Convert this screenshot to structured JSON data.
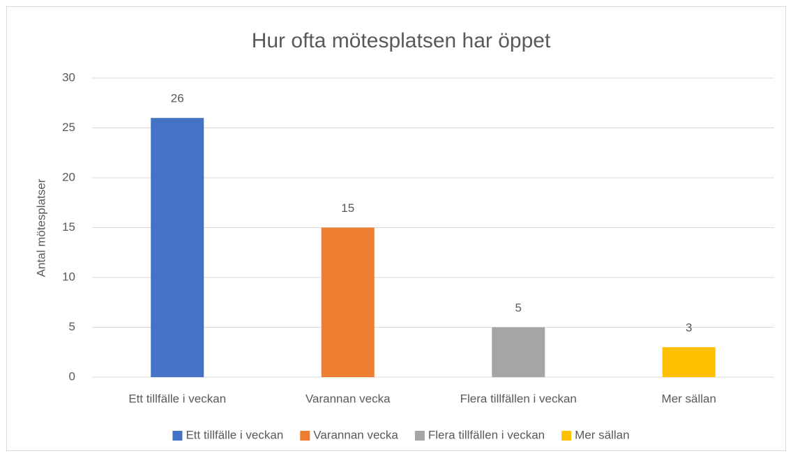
{
  "chart_data": {
    "type": "bar",
    "title": "Hur ofta mötesplatsen har öppet",
    "y_label": "Antal mötesplatser",
    "categories": [
      "Ett tillfälle i veckan",
      "Varannan vecka",
      "Flera tillfällen i veckan",
      "Mer sällan"
    ],
    "values": [
      26,
      15,
      5,
      3
    ],
    "colors": [
      "#4472c4",
      "#ed7d31",
      "#a5a5a5",
      "#ffc000"
    ],
    "ylim": [
      0,
      30
    ],
    "yticks": [
      0,
      5,
      10,
      15,
      20,
      25,
      30
    ],
    "grid": true,
    "legend": "bottom"
  }
}
